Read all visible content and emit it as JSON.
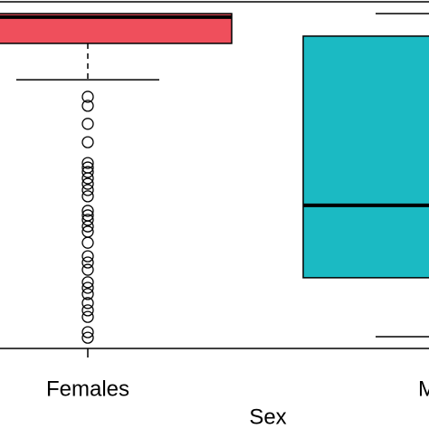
{
  "chart_data": {
    "type": "box",
    "x_label": "Sex",
    "categories": [
      "Females",
      "Males"
    ],
    "colors": [
      "#ef4f5c",
      "#1bbac3"
    ],
    "ylim": [
      0,
      100
    ],
    "boxes": [
      {
        "q1": 88.0,
        "median": 95.6,
        "q3": 96.6,
        "whisker_low": 77.5,
        "outliers": [
          72.6,
          70.0,
          64.8,
          59.5,
          53.5,
          52.2,
          50.9,
          49.1,
          47.5,
          45.7,
          43.9,
          39.7,
          38.4,
          37.1,
          35.2,
          33.7,
          30.5,
          26.6,
          24.8,
          22.7,
          19.1,
          17.5,
          15.7,
          13.1,
          11.0,
          9.1,
          4.7,
          3.1
        ]
      },
      {
        "q1": 20.4,
        "median": 41.3,
        "q3": 90.1,
        "whisker_low": 3.4,
        "whisker_high": 96.6,
        "outliers": []
      }
    ]
  }
}
